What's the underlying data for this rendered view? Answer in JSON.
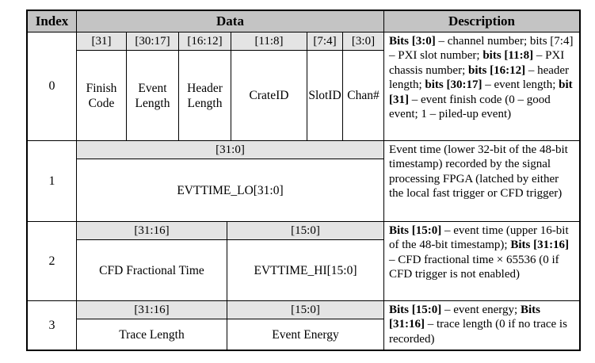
{
  "table": {
    "headers": {
      "index": "Index",
      "data": "Data",
      "description": "Description"
    },
    "rows": [
      {
        "index": "0",
        "fields": [
          {
            "bits": "[31]",
            "label": "Finish Code"
          },
          {
            "bits": "[30:17]",
            "label": "Event Length"
          },
          {
            "bits": "[16:12]",
            "label": "Header Length"
          },
          {
            "bits": "[11:8]",
            "label": "CrateID"
          },
          {
            "bits": "[7:4]",
            "label": "SlotID"
          },
          {
            "bits": "[3:0]",
            "label": "Chan#"
          }
        ],
        "description": [
          {
            "t": "Bits [3:0]",
            "b": true
          },
          {
            "t": " – channel number; bits [7:4] – PXI slot number; ",
            "b": false
          },
          {
            "t": "bits [11:8]",
            "b": true
          },
          {
            "t": " – PXI chassis number; ",
            "b": false
          },
          {
            "t": "bits [16:12]",
            "b": true
          },
          {
            "t": " – header length; ",
            "b": false
          },
          {
            "t": "bits [30:17]",
            "b": true
          },
          {
            "t": " – event length; ",
            "b": false
          },
          {
            "t": "bit [31]",
            "b": true
          },
          {
            "t": " – event finish code (0 – good event; 1 – piled-up event)",
            "b": false
          }
        ]
      },
      {
        "index": "1",
        "fields": [
          {
            "bits": "[31:0]",
            "label": "EVTTIME_LO[31:0]"
          }
        ],
        "description": [
          {
            "t": "Event time (lower 32-bit of the 48-bit timestamp) recorded by the signal processing FPGA (latched by either the local fast trigger or CFD trigger)",
            "b": false
          }
        ]
      },
      {
        "index": "2",
        "fields": [
          {
            "bits": "[31:16]",
            "label": "CFD Fractional Time"
          },
          {
            "bits": "[15:0]",
            "label": "EVTTIME_HI[15:0]"
          }
        ],
        "description": [
          {
            "t": "Bits [15:0]",
            "b": true
          },
          {
            "t": " – event time (upper 16-bit of the 48-bit timestamp); ",
            "b": false
          },
          {
            "t": "Bits [31:16]",
            "b": true
          },
          {
            "t": " – CFD fractional time × 65536 (0 if CFD trigger is not enabled)",
            "b": false
          }
        ]
      },
      {
        "index": "3",
        "fields": [
          {
            "bits": "[31:16]",
            "label": "Trace Length"
          },
          {
            "bits": "[15:0]",
            "label": "Event Energy"
          }
        ],
        "description": [
          {
            "t": "Bits [15:0]",
            "b": true
          },
          {
            "t": " – event energy; ",
            "b": false
          },
          {
            "t": "Bits [31:16]",
            "b": true
          },
          {
            "t": " – trace length (0 if no trace is recorded)",
            "b": false
          }
        ]
      }
    ]
  },
  "colors": {
    "header_bg": "#c4c4c4",
    "bit_band_bg": "#e4e4e4",
    "border": "#000000",
    "page_bg": "#ffffff"
  }
}
